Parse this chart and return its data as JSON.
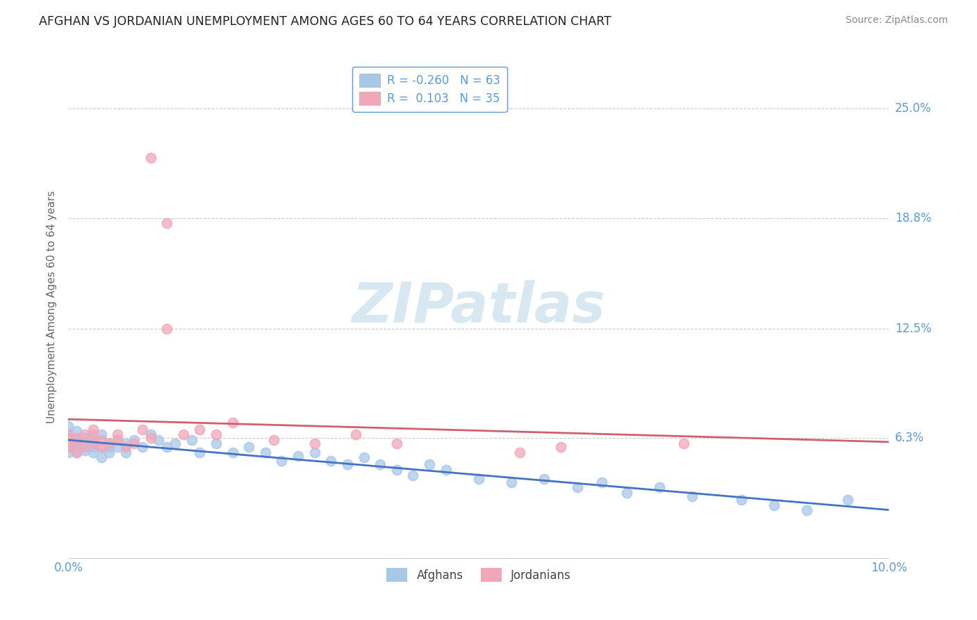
{
  "title": "AFGHAN VS JORDANIAN UNEMPLOYMENT AMONG AGES 60 TO 64 YEARS CORRELATION CHART",
  "source": "Source: ZipAtlas.com",
  "ylabel": "Unemployment Among Ages 60 to 64 years",
  "ytick_labels": [
    "25.0%",
    "18.8%",
    "12.5%",
    "6.3%"
  ],
  "ytick_values": [
    0.25,
    0.188,
    0.125,
    0.063
  ],
  "xlim": [
    0.0,
    0.1
  ],
  "ylim": [
    -0.005,
    0.28
  ],
  "afghan_R": -0.26,
  "afghan_N": 63,
  "jordanian_R": 0.103,
  "jordanian_N": 35,
  "afghan_color": "#a8c8e8",
  "afghan_line_color": "#4472c4",
  "jordanian_color": "#f0a8b8",
  "jordanian_line_color": "#d06070",
  "background_color": "#ffffff",
  "title_fontsize": 12.5,
  "axis_label_fontsize": 11,
  "tick_fontsize": 12,
  "legend_fontsize": 12,
  "source_fontsize": 10,
  "marker_size": 100,
  "marker_alpha": 0.75,
  "grid_color": "#cccccc",
  "grid_style": "--",
  "grid_linewidth": 0.8,
  "watermark_text": "ZIPatlas",
  "watermark_fontsize": 58,
  "watermark_color": "#d8e8f0",
  "af_x": [
    0.0,
    0.0,
    0.0,
    0.0,
    0.0,
    0.001,
    0.001,
    0.001,
    0.001,
    0.001,
    0.002,
    0.002,
    0.002,
    0.002,
    0.003,
    0.003,
    0.003,
    0.003,
    0.004,
    0.004,
    0.004,
    0.005,
    0.005,
    0.005,
    0.006,
    0.006,
    0.007,
    0.007,
    0.008,
    0.009,
    0.01,
    0.011,
    0.012,
    0.013,
    0.015,
    0.016,
    0.018,
    0.02,
    0.022,
    0.024,
    0.026,
    0.028,
    0.03,
    0.032,
    0.034,
    0.036,
    0.038,
    0.04,
    0.042,
    0.044,
    0.046,
    0.05,
    0.054,
    0.058,
    0.062,
    0.065,
    0.068,
    0.072,
    0.076,
    0.082,
    0.086,
    0.09,
    0.095
  ],
  "af_y": [
    0.063,
    0.058,
    0.065,
    0.07,
    0.055,
    0.062,
    0.06,
    0.067,
    0.055,
    0.058,
    0.06,
    0.058,
    0.063,
    0.056,
    0.058,
    0.062,
    0.055,
    0.06,
    0.058,
    0.065,
    0.052,
    0.06,
    0.055,
    0.058,
    0.058,
    0.062,
    0.055,
    0.06,
    0.062,
    0.058,
    0.065,
    0.062,
    0.058,
    0.06,
    0.062,
    0.055,
    0.06,
    0.055,
    0.058,
    0.055,
    0.05,
    0.053,
    0.055,
    0.05,
    0.048,
    0.052,
    0.048,
    0.045,
    0.042,
    0.048,
    0.045,
    0.04,
    0.038,
    0.04,
    0.035,
    0.038,
    0.032,
    0.035,
    0.03,
    0.028,
    0.025,
    0.022,
    0.028
  ],
  "jo_x": [
    0.0,
    0.0,
    0.0,
    0.0,
    0.001,
    0.001,
    0.001,
    0.002,
    0.002,
    0.003,
    0.003,
    0.003,
    0.004,
    0.004,
    0.005,
    0.006,
    0.006,
    0.007,
    0.008,
    0.009,
    0.01,
    0.012,
    0.014,
    0.016,
    0.018,
    0.02,
    0.025,
    0.03,
    0.035,
    0.04,
    0.055,
    0.06,
    0.075,
    0.01,
    0.012
  ],
  "jo_y": [
    0.058,
    0.062,
    0.06,
    0.065,
    0.055,
    0.06,
    0.063,
    0.058,
    0.065,
    0.06,
    0.065,
    0.068,
    0.058,
    0.062,
    0.06,
    0.065,
    0.062,
    0.058,
    0.06,
    0.068,
    0.063,
    0.125,
    0.065,
    0.068,
    0.065,
    0.072,
    0.062,
    0.06,
    0.065,
    0.06,
    0.055,
    0.058,
    0.06,
    0.222,
    0.185
  ]
}
